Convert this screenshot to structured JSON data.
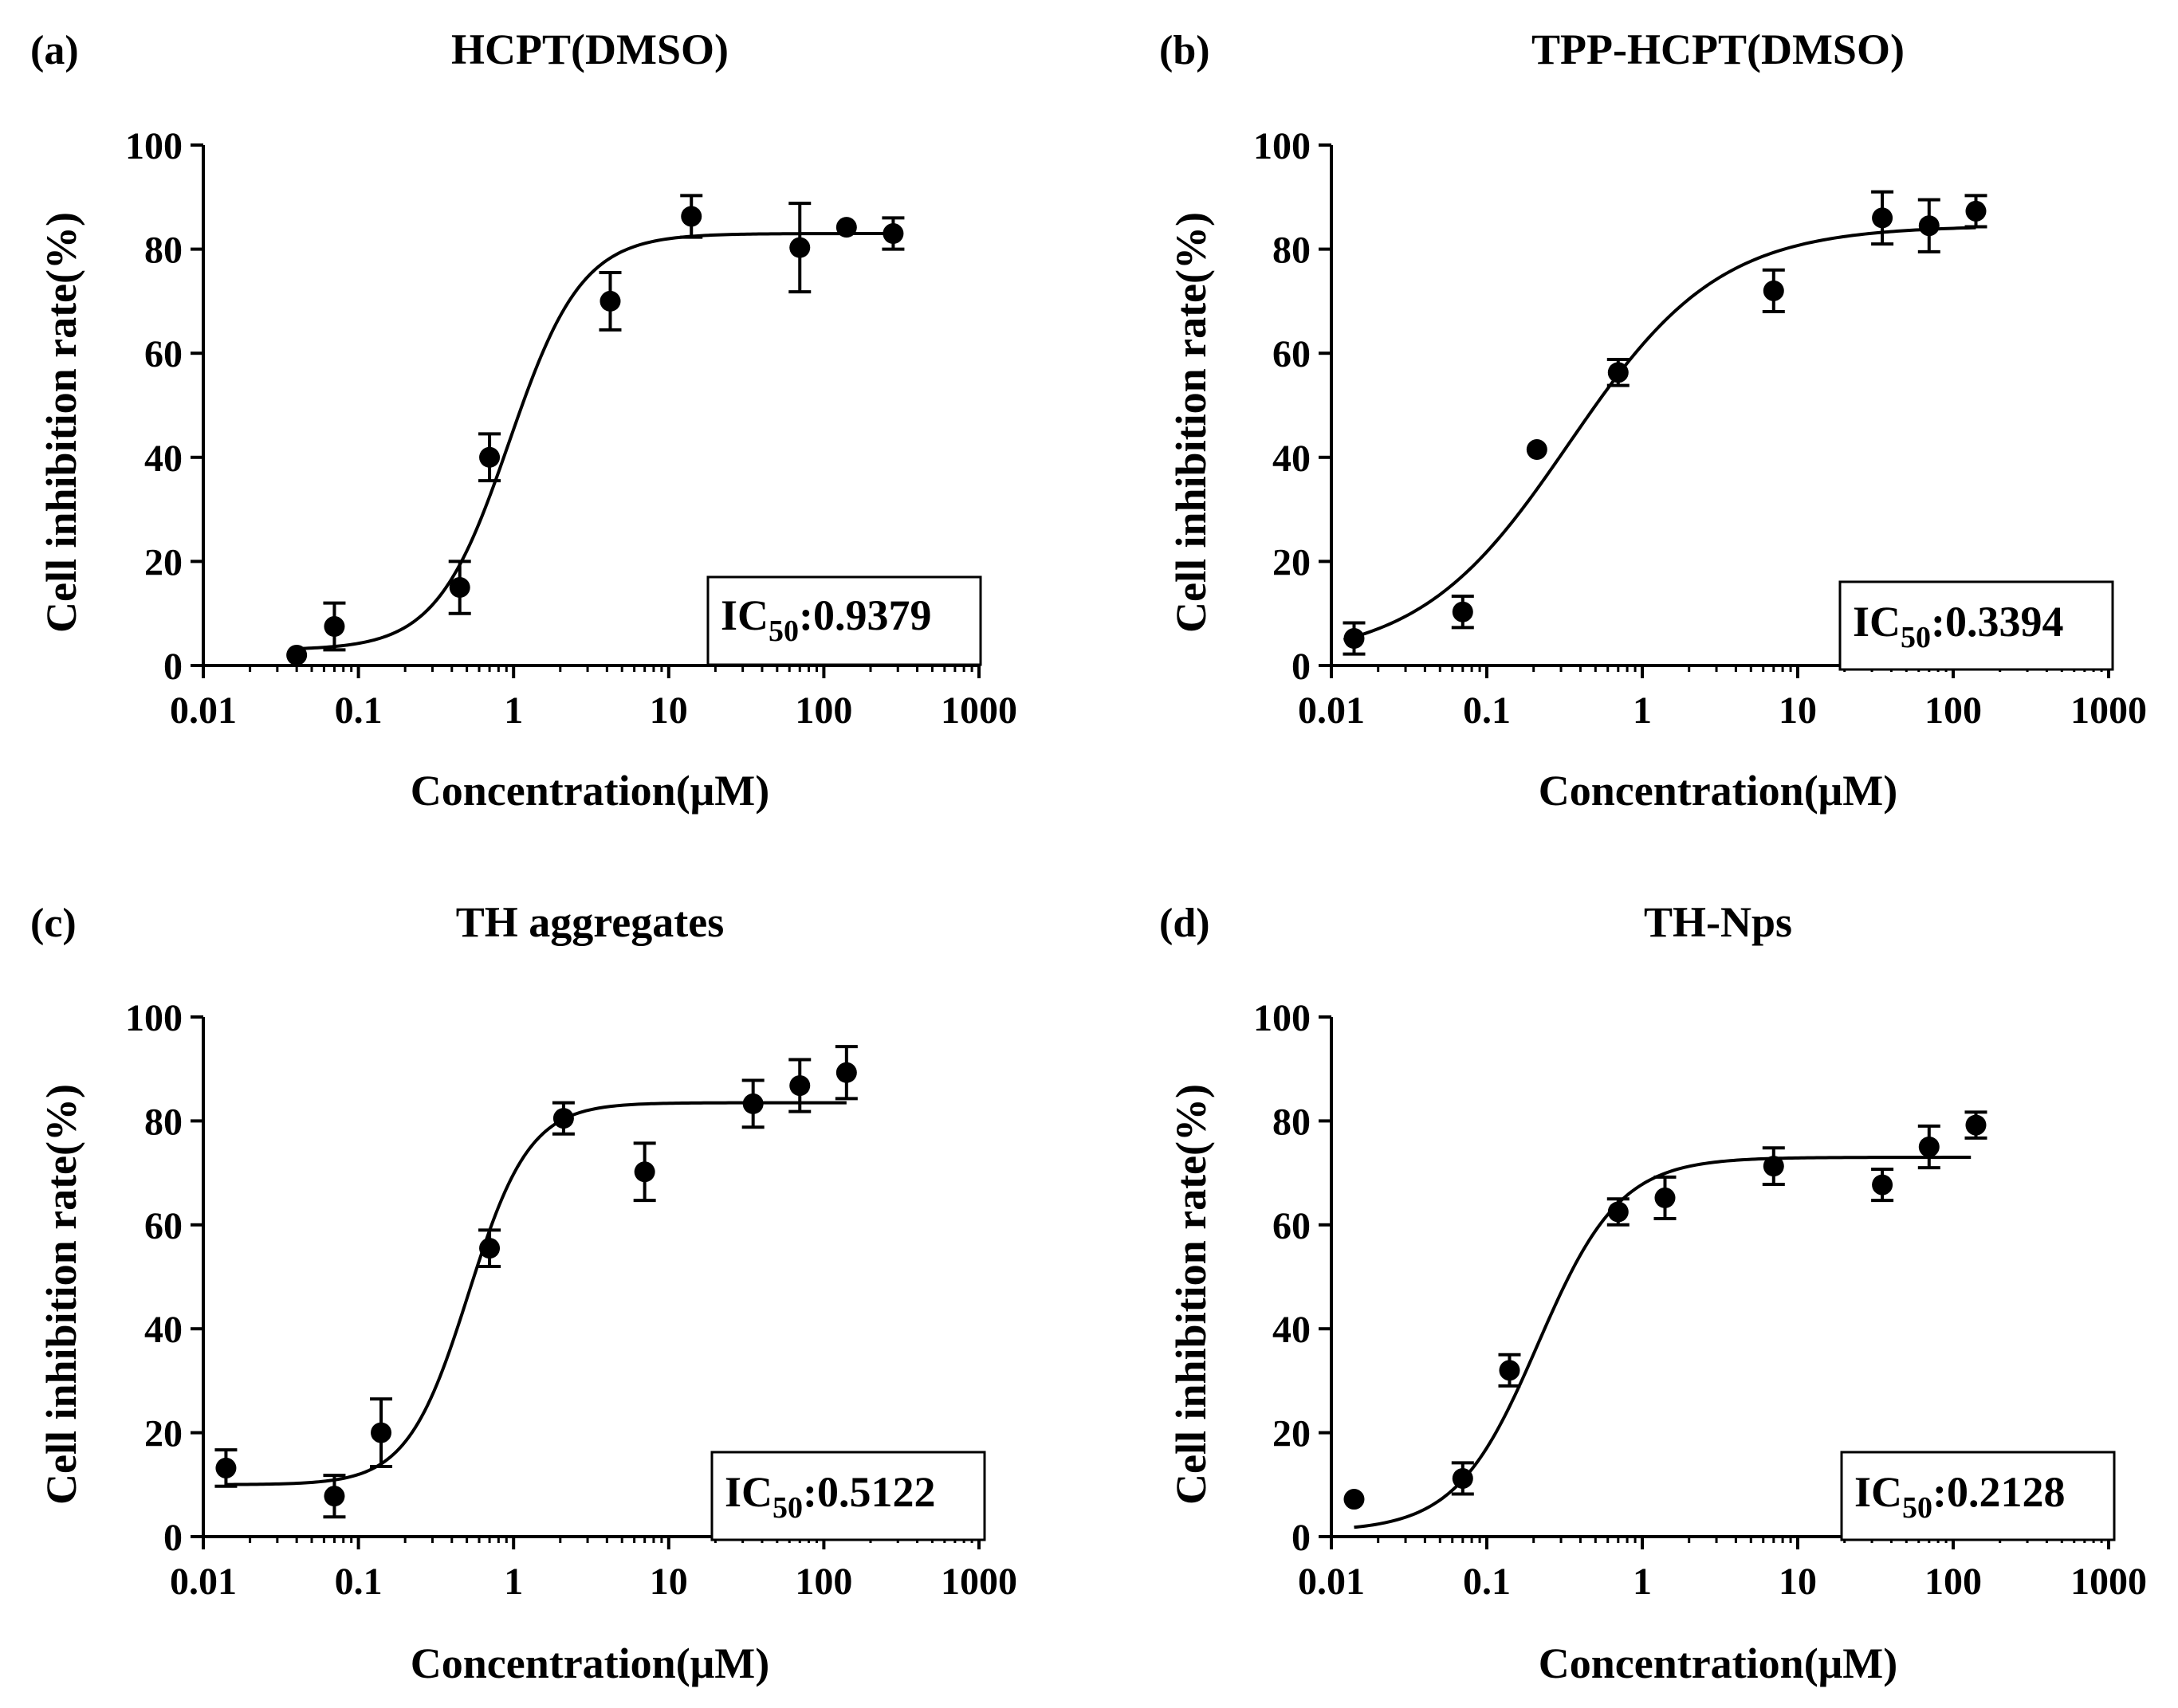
{
  "chart_data": [
    {
      "panel": "(a)",
      "type": "scatter",
      "title": "HCPT(DMSO)",
      "xlabel": "Concentration(μM)",
      "ylabel": "Cell inhibition rate(%)",
      "xscale": "log",
      "xlim": [
        0.01,
        1000
      ],
      "ylim": [
        0,
        100
      ],
      "xticks": [
        "0.01",
        "0.1",
        "1",
        "10",
        "100",
        "1000"
      ],
      "yticks": [
        "0",
        "20",
        "40",
        "60",
        "80",
        "100"
      ],
      "ic50_prefix": "IC",
      "ic50_sub": "50",
      "ic50_value": ":0.9379",
      "points": [
        {
          "x": 0.04,
          "y": 2,
          "err": 0
        },
        {
          "x": 0.07,
          "y": 7.5,
          "err": 4.5
        },
        {
          "x": 0.45,
          "y": 15,
          "err": 5
        },
        {
          "x": 0.7,
          "y": 40,
          "err": 4.5
        },
        {
          "x": 4.2,
          "y": 70,
          "err": 5.5
        },
        {
          "x": 14,
          "y": 86.3,
          "err": 4
        },
        {
          "x": 70,
          "y": 80.3,
          "err": 8.5
        },
        {
          "x": 140,
          "y": 84.2,
          "err": 0
        },
        {
          "x": 280,
          "y": 83,
          "err": 3
        }
      ],
      "fit": {
        "bottom": 3,
        "top": 83,
        "ic50": 0.9379,
        "hill": 1.85,
        "xmin": 0.04,
        "xmax": 280
      }
    },
    {
      "panel": "(b)",
      "type": "scatter",
      "title": "TPP-HCPT(DMSO)",
      "xlabel": "Concentration(μM)",
      "ylabel": "Cell inhibition rate(%)",
      "xscale": "log",
      "xlim": [
        0.01,
        1000
      ],
      "ylim": [
        0,
        100
      ],
      "xticks": [
        "0.01",
        "0.1",
        "1",
        "10",
        "100",
        "1000"
      ],
      "yticks": [
        "0",
        "20",
        "40",
        "60",
        "80",
        "100"
      ],
      "ic50_prefix": "IC",
      "ic50_sub": "50",
      "ic50_value": ":0.3394",
      "points": [
        {
          "x": 0.014,
          "y": 5.2,
          "err": 3
        },
        {
          "x": 0.07,
          "y": 10.3,
          "err": 3
        },
        {
          "x": 0.21,
          "y": 41.5,
          "err": 0
        },
        {
          "x": 0.7,
          "y": 56.3,
          "err": 2.5
        },
        {
          "x": 7,
          "y": 72,
          "err": 4
        },
        {
          "x": 35,
          "y": 86,
          "err": 5
        },
        {
          "x": 70,
          "y": 84.5,
          "err": 5
        },
        {
          "x": 140,
          "y": 87.3,
          "err": 3
        }
      ],
      "fit": {
        "bottom": 1,
        "top": 84.5,
        "ic50": 0.3394,
        "hill": 0.9,
        "xmin": 0.012,
        "xmax": 140
      }
    },
    {
      "panel": "(c)",
      "type": "scatter",
      "title": "TH aggregates",
      "xlabel": "Concentration(μM)",
      "ylabel": "Cell inhibition rate(%)",
      "xscale": "log",
      "xlim": [
        0.01,
        1000
      ],
      "ylim": [
        0,
        100
      ],
      "xticks": [
        "0.01",
        "0.1",
        "1",
        "10",
        "100",
        "1000"
      ],
      "yticks": [
        "0",
        "20",
        "40",
        "60",
        "80",
        "100"
      ],
      "ic50_prefix": "IC",
      "ic50_sub": "50",
      "ic50_value": ":0.5122",
      "points": [
        {
          "x": 0.014,
          "y": 13.2,
          "err": 3.5
        },
        {
          "x": 0.07,
          "y": 7.8,
          "err": 4
        },
        {
          "x": 0.14,
          "y": 20,
          "err": 6.5
        },
        {
          "x": 0.7,
          "y": 55.5,
          "err": 3.5
        },
        {
          "x": 2.1,
          "y": 80.5,
          "err": 3
        },
        {
          "x": 7,
          "y": 70.2,
          "err": 5.5
        },
        {
          "x": 35,
          "y": 83.3,
          "err": 4.5
        },
        {
          "x": 70,
          "y": 86.8,
          "err": 5
        },
        {
          "x": 140,
          "y": 89.3,
          "err": 5
        }
      ],
      "fit": {
        "bottom": 10,
        "top": 83.5,
        "ic50": 0.5122,
        "hill": 2.2,
        "xmin": 0.014,
        "xmax": 140
      }
    },
    {
      "panel": "(d)",
      "type": "scatter",
      "title": "TH-Nps",
      "xlabel": "Concentration(μM)",
      "ylabel": "Cell inhibition rate(%)",
      "xscale": "log",
      "xlim": [
        0.01,
        1000
      ],
      "ylim": [
        0,
        100
      ],
      "xticks": [
        "0.01",
        "0.1",
        "1",
        "10",
        "100",
        "1000"
      ],
      "yticks": [
        "0",
        "20",
        "40",
        "60",
        "80",
        "100"
      ],
      "ic50_prefix": "IC",
      "ic50_sub": "50",
      "ic50_value": ":0.2128",
      "points": [
        {
          "x": 0.014,
          "y": 7.2,
          "err": 0
        },
        {
          "x": 0.07,
          "y": 11.2,
          "err": 3
        },
        {
          "x": 0.14,
          "y": 32,
          "err": 3
        },
        {
          "x": 0.7,
          "y": 62.5,
          "err": 2.5
        },
        {
          "x": 1.4,
          "y": 65.2,
          "err": 4
        },
        {
          "x": 7,
          "y": 71.3,
          "err": 3.5
        },
        {
          "x": 35,
          "y": 67.7,
          "err": 3
        },
        {
          "x": 70,
          "y": 75,
          "err": 4
        },
        {
          "x": 140,
          "y": 79.2,
          "err": 2.5
        }
      ],
      "fit": {
        "bottom": 1,
        "top": 73,
        "ic50": 0.2128,
        "hill": 1.65,
        "xmin": 0.014,
        "xmax": 130
      }
    }
  ]
}
